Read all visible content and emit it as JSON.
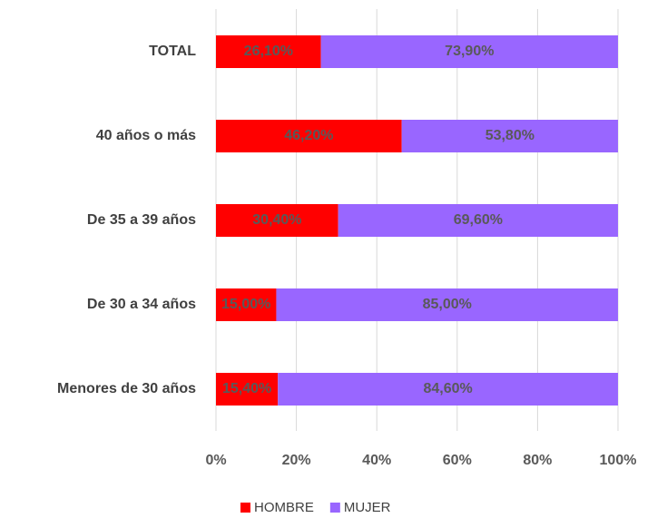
{
  "chart_data": {
    "type": "stacked_bar_horizontal",
    "categories": [
      "TOTAL",
      "40 años o más",
      "De 35 a 39 años",
      "De 30 a 34 años",
      "Menores de 30 años"
    ],
    "series": [
      {
        "name": "HOMBRE",
        "color": "#ff0000",
        "values": [
          26.1,
          46.2,
          30.4,
          15.0,
          15.4
        ],
        "value_labels": [
          "26,10%",
          "46,20%",
          "30,40%",
          "15,00%",
          "15,40%"
        ]
      },
      {
        "name": "MUJER",
        "color": "#9966ff",
        "values": [
          73.9,
          53.8,
          69.6,
          85.0,
          84.6
        ],
        "value_labels": [
          "73,90%",
          "53,80%",
          "69,60%",
          "85,00%",
          "84,60%"
        ]
      }
    ],
    "xlim": [
      0,
      100
    ],
    "xticks": [
      {
        "value": 0,
        "label": "0%"
      },
      {
        "value": 20,
        "label": "20%"
      },
      {
        "value": 40,
        "label": "40%"
      },
      {
        "value": 60,
        "label": "60%"
      },
      {
        "value": 80,
        "label": "80%"
      },
      {
        "value": 100,
        "label": "100%"
      }
    ],
    "grid": true,
    "legend": "bottom"
  }
}
